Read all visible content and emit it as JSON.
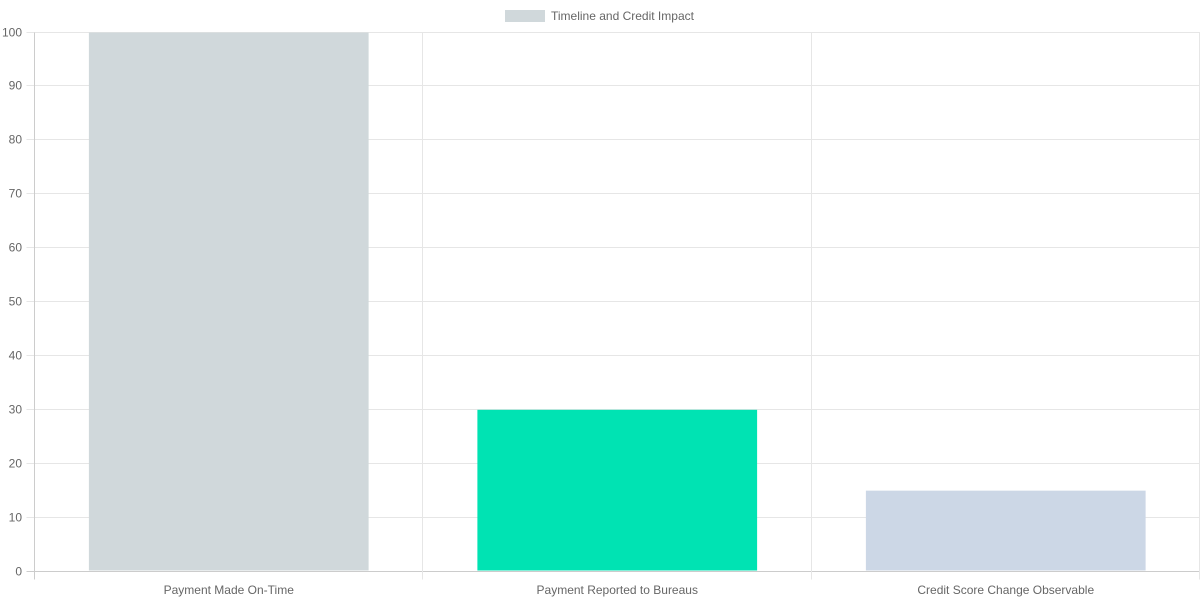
{
  "chart_data": {
    "type": "bar",
    "title": "",
    "categories": [
      "Payment Made On-Time",
      "Payment Reported to Bureaus",
      "Credit Score Change Observable"
    ],
    "series": [
      {
        "name": "Timeline and Credit Impact",
        "values": [
          100,
          30,
          15
        ],
        "colors": [
          "#d0d8db",
          "#00e3b3",
          "#ccd7e6"
        ]
      }
    ],
    "legend_color": "#d0d8db",
    "xlabel": "",
    "ylabel": "",
    "ylim": [
      0,
      100
    ],
    "yticks": [
      0,
      10,
      20,
      30,
      40,
      50,
      60,
      70,
      80,
      90,
      100
    ],
    "grid": true,
    "legend_position": "top"
  }
}
